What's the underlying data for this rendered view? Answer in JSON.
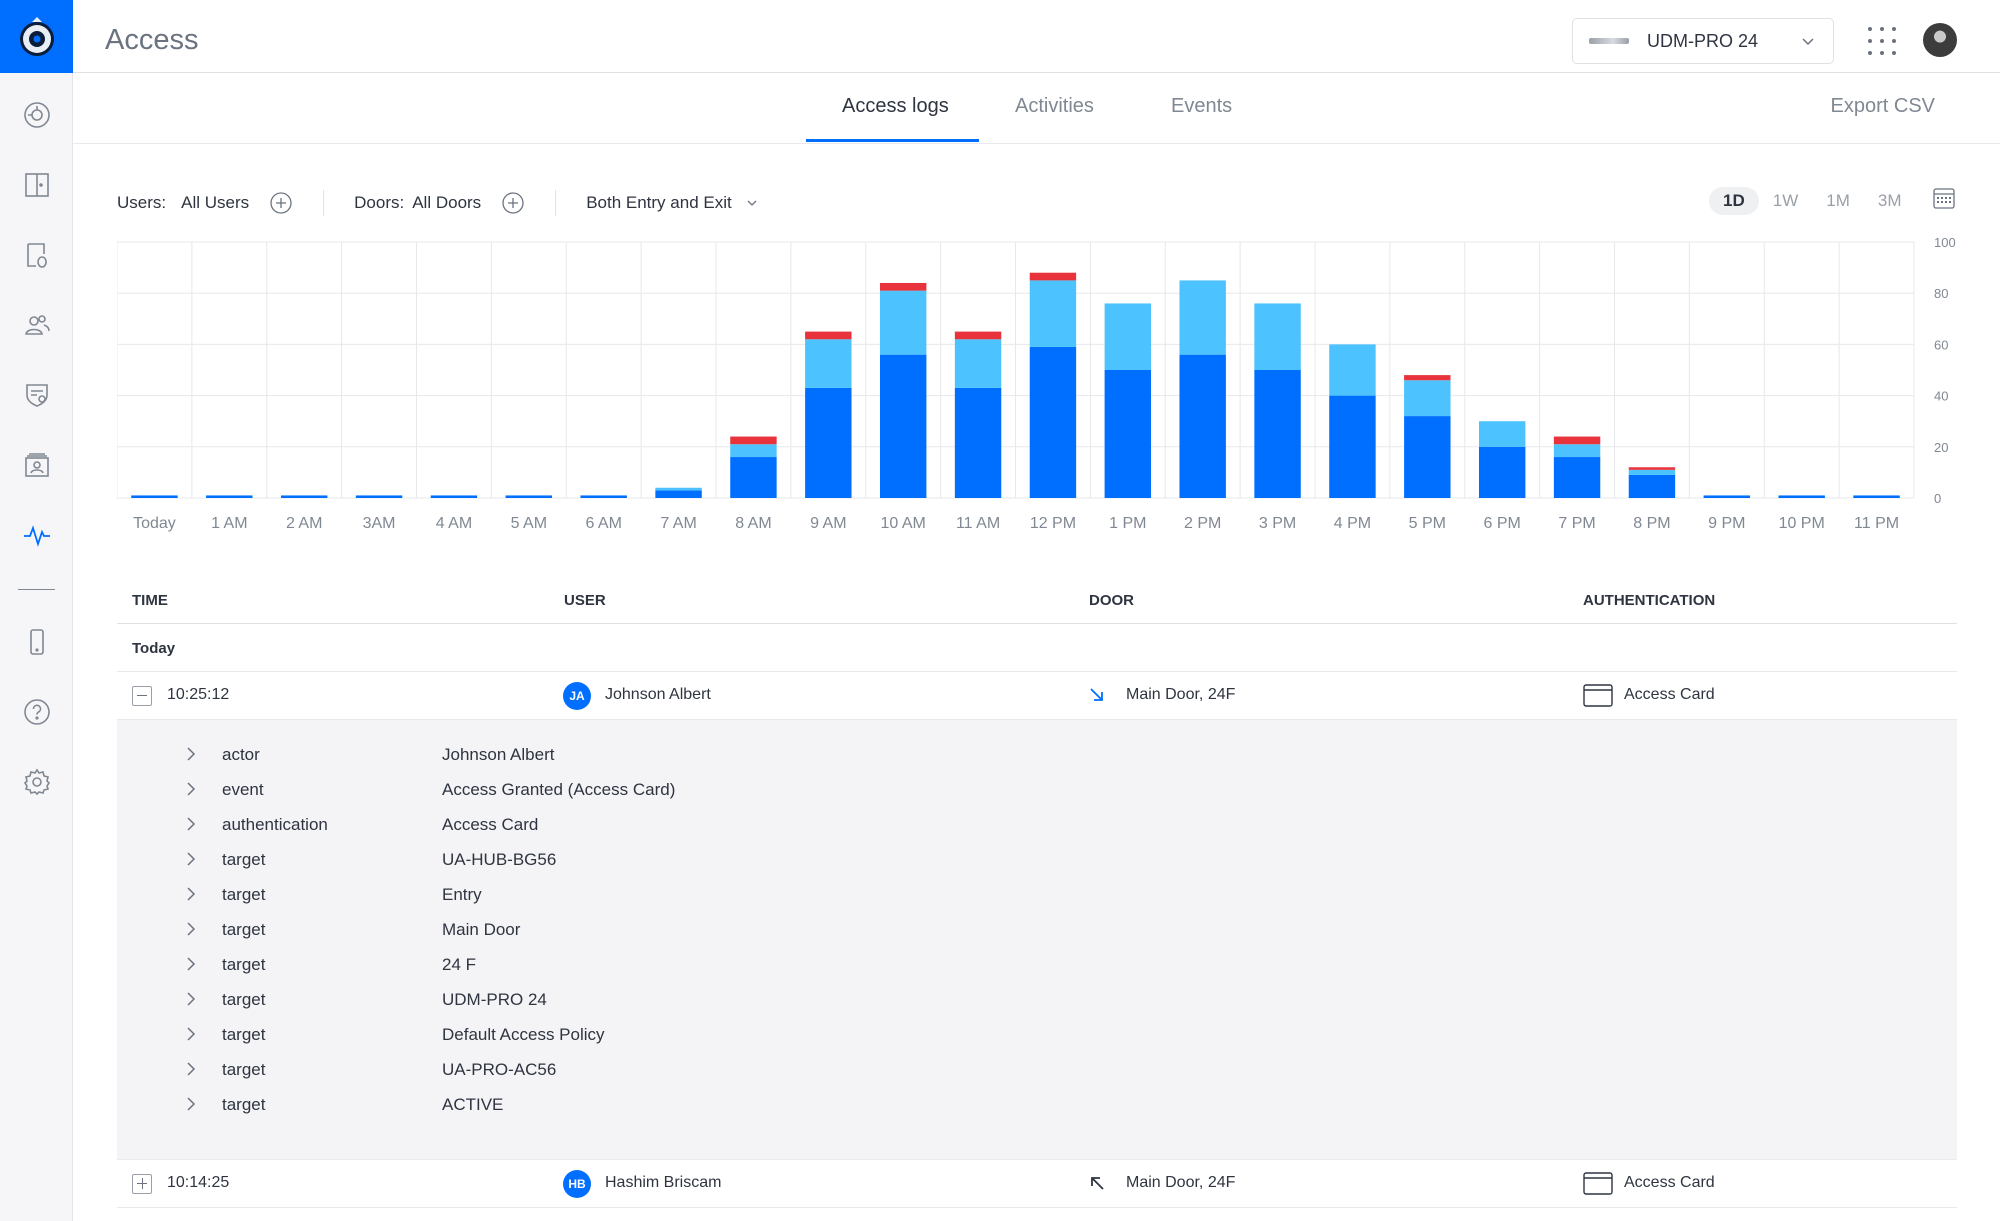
{
  "app": {
    "title": "Access"
  },
  "header": {
    "device_name": "UDM-PRO 24",
    "icons": [
      "apps-grid-icon",
      "user-avatar"
    ]
  },
  "sidebar": {
    "items": [
      {
        "icon": "dashboard-icon"
      },
      {
        "icon": "door-icon"
      },
      {
        "icon": "door-access-icon"
      },
      {
        "icon": "users-icon"
      },
      {
        "icon": "policy-icon"
      },
      {
        "icon": "visitor-icon"
      },
      {
        "icon": "activity-icon",
        "active": true
      },
      {
        "icon": "mobile-icon"
      },
      {
        "icon": "help-icon"
      },
      {
        "icon": "settings-icon"
      }
    ]
  },
  "tabs": [
    {
      "label": "Access logs",
      "active": true
    },
    {
      "label": "Activities"
    },
    {
      "label": "Events"
    }
  ],
  "export_label": "Export CSV",
  "filters": {
    "users_label": "Users:",
    "users_value": "All Users",
    "doors_label": "Doors:",
    "doors_value": "All Doors",
    "direction": "Both Entry and Exit"
  },
  "ranges": [
    {
      "label": "1D",
      "active": true
    },
    {
      "label": "1W"
    },
    {
      "label": "1M"
    },
    {
      "label": "3M"
    }
  ],
  "chart_data": {
    "type": "bar",
    "stacked": true,
    "categories": [
      "Today",
      "1 AM",
      "2 AM",
      "3AM",
      "4 AM",
      "5 AM",
      "6 AM",
      "7 AM",
      "8 AM",
      "9 AM",
      "10 AM",
      "11 AM",
      "12 PM",
      "1 PM",
      "2 PM",
      "3 PM",
      "4 PM",
      "5 PM",
      "6 PM",
      "7 PM",
      "8 PM",
      "9 PM",
      "10 PM",
      "11 PM"
    ],
    "series": [
      {
        "color": "#006fff",
        "values": [
          1,
          1,
          1,
          1,
          1,
          1,
          1,
          3,
          16,
          43,
          56,
          43,
          59,
          50,
          56,
          50,
          40,
          32,
          20,
          16,
          9,
          1,
          1,
          1
        ]
      },
      {
        "color": "#4cc3ff",
        "values": [
          0,
          0,
          0,
          0,
          0,
          0,
          0,
          1,
          5,
          19,
          25,
          19,
          26,
          26,
          29,
          26,
          20,
          14,
          10,
          5,
          2,
          0,
          0,
          0
        ]
      },
      {
        "color": "#e8323c",
        "values": [
          0,
          0,
          0,
          0,
          0,
          0,
          0,
          0,
          3,
          3,
          3,
          3,
          3,
          0,
          0,
          0,
          0,
          2,
          0,
          3,
          1,
          0,
          0,
          0
        ]
      }
    ],
    "ylim": [
      0,
      100
    ],
    "yticks": [
      "100",
      "80",
      "60",
      "40",
      "20",
      "0"
    ],
    "grid": true
  },
  "table": {
    "columns": [
      "TIME",
      "USER",
      "DOOR",
      "AUTHENTICATION"
    ],
    "group": "Today",
    "rows": [
      {
        "time": "10:25:12",
        "initials": "JA",
        "user": "Johnson Albert",
        "direction": "entry",
        "door": "Main Door, 24F",
        "auth": "Access Card",
        "expanded": true
      },
      {
        "time": "10:14:25",
        "initials": "HB",
        "user": "Hashim Briscam",
        "direction": "exit",
        "door": "Main Door, 24F",
        "auth": "Access Card",
        "expanded": false
      }
    ],
    "details": [
      {
        "key": "actor",
        "value": "Johnson Albert"
      },
      {
        "key": "event",
        "value": "Access Granted (Access Card)"
      },
      {
        "key": "authentication",
        "value": "Access Card"
      },
      {
        "key": "target",
        "value": "UA-HUB-BG56"
      },
      {
        "key": "target",
        "value": "Entry"
      },
      {
        "key": "target",
        "value": "Main Door"
      },
      {
        "key": "target",
        "value": "24 F"
      },
      {
        "key": "target",
        "value": "UDM-PRO 24"
      },
      {
        "key": "target",
        "value": "Default Access Policy"
      },
      {
        "key": "target",
        "value": "UA-PRO-AC56"
      },
      {
        "key": "target",
        "value": "ACTIVE"
      }
    ]
  }
}
